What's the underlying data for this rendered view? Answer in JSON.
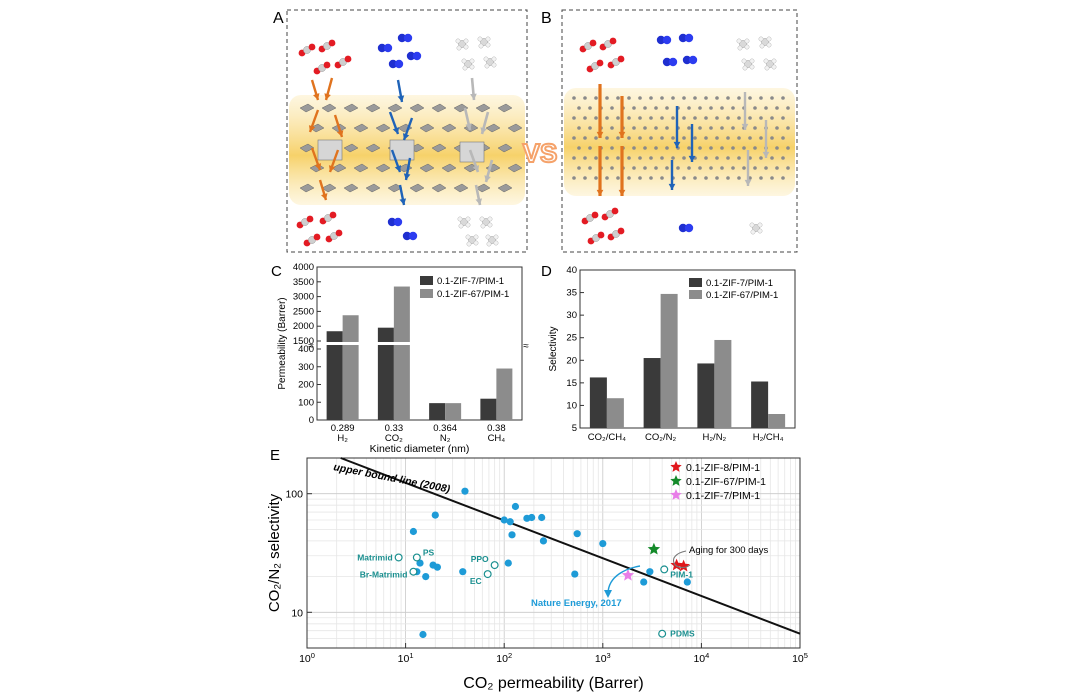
{
  "panels": {
    "A": {
      "letter": "A"
    },
    "B": {
      "letter": "B"
    },
    "vs_label": "VS",
    "C": {
      "letter": "C"
    },
    "D": {
      "letter": "D"
    },
    "E": {
      "letter": "E"
    }
  },
  "colors": {
    "series_dark": "#3a3a3a",
    "series_light": "#8c8c8c",
    "co2_arrow": "#e0731e",
    "n2_arrow": "#1f63b8",
    "ch4_arrow": "#b8b8b8",
    "membrane": "#f4c75a",
    "points": "#1e9bd7",
    "open_points": "#1a8f8f",
    "star_zif8": "#e0161b",
    "star_zif67": "#148a2a",
    "star_zif7": "#e87ee8",
    "vs": "#f5a26a"
  },
  "chart_data": [
    {
      "id": "C",
      "type": "bar",
      "ylabel": "Permeability (Barrer)",
      "xlabel": "Kinetic diameter (nm)",
      "categories": [
        {
          "value": "0.289",
          "gas": "H₂"
        },
        {
          "value": "0.33",
          "gas": "CO₂"
        },
        {
          "value": "0.364",
          "gas": "N₂"
        },
        {
          "value": "0.38",
          "gas": "CH₄"
        }
      ],
      "series": [
        {
          "name": "0.1-ZIF-7/PIM-1",
          "values": [
            1830,
            1950,
            95,
            120
          ]
        },
        {
          "name": "0.1-ZIF-67/PIM-1",
          "values": [
            2370,
            3340,
            95,
            290
          ]
        }
      ],
      "axis_break": [
        400,
        1500
      ],
      "yticks_lower": [
        0,
        100,
        200,
        300,
        400
      ],
      "yticks_upper": [
        1500,
        2000,
        2500,
        3000,
        3500,
        4000
      ],
      "legend_position": "top-right"
    },
    {
      "id": "D",
      "type": "bar",
      "ylabel": "Selectivity",
      "categories": [
        "CO₂/CH₄",
        "CO₂/N₂",
        "H₂/N₂",
        "H₂/CH₄"
      ],
      "series": [
        {
          "name": "0.1-ZIF-7/PIM-1",
          "values": [
            16.2,
            20.5,
            19.3,
            15.3
          ]
        },
        {
          "name": "0.1-ZIF-67/PIM-1",
          "values": [
            11.6,
            34.7,
            24.5,
            8.1
          ]
        }
      ],
      "ylim": [
        5,
        40
      ],
      "yticks": [
        5,
        10,
        15,
        20,
        25,
        30,
        35,
        40
      ],
      "legend_position": "top-left"
    },
    {
      "id": "E",
      "type": "scatter",
      "xlabel": "CO₂ permeability (Barrer)",
      "ylabel": "CO₂/N₂ selectivity",
      "x_scale": "log",
      "y_scale": "log",
      "xlim": [
        1,
        100000
      ],
      "ylim": [
        5,
        200
      ],
      "xtick_exponents": [
        0,
        1,
        2,
        3,
        4,
        5
      ],
      "ytick_labels": [
        {
          "value": 10,
          "label": "10"
        },
        {
          "value": 100,
          "label": "100"
        }
      ],
      "upper_bound": {
        "label": "upper bound line (2008)",
        "points": [
          [
            2.2,
            200
          ],
          [
            100000,
            6.6
          ]
        ]
      },
      "filled_points": [
        [
          12,
          48
        ],
        [
          20,
          66
        ],
        [
          40,
          105
        ],
        [
          100,
          60
        ],
        [
          115,
          58
        ],
        [
          130,
          78
        ],
        [
          170,
          62
        ],
        [
          190,
          63
        ],
        [
          240,
          63
        ],
        [
          120,
          45
        ],
        [
          250,
          40
        ],
        [
          550,
          46
        ],
        [
          1000,
          38
        ],
        [
          13,
          22
        ],
        [
          14,
          26
        ],
        [
          19,
          25
        ],
        [
          21,
          24
        ],
        [
          16,
          20
        ],
        [
          38,
          22
        ],
        [
          110,
          26
        ],
        [
          520,
          21
        ],
        [
          2600,
          18
        ],
        [
          3000,
          22
        ],
        [
          7200,
          18
        ],
        [
          15,
          6.5
        ]
      ],
      "open_points": [
        {
          "x": 8.5,
          "y": 29,
          "label": "Matrimid"
        },
        {
          "x": 13,
          "y": 29,
          "label": "PS"
        },
        {
          "x": 12,
          "y": 22,
          "label": "Br-Matrimid"
        },
        {
          "x": 80,
          "y": 25,
          "label": "PPO"
        },
        {
          "x": 68,
          "y": 21,
          "label": "EC"
        },
        {
          "x": 4200,
          "y": 23,
          "label": "PIM-1"
        },
        {
          "x": 4000,
          "y": 6.6,
          "label": "PDMS"
        }
      ],
      "stars": [
        {
          "name": "0.1-ZIF-8/PIM-1",
          "x": 5600,
          "y": 25
        },
        {
          "name": "0.1-ZIF-8/PIM-1",
          "x": 6600,
          "y": 24.5
        },
        {
          "name": "0.1-ZIF-67/PIM-1",
          "x": 3300,
          "y": 34
        },
        {
          "name": "0.1-ZIF-7/PIM-1",
          "x": 1800,
          "y": 20.5
        }
      ],
      "legend": [
        "0.1-ZIF-8/PIM-1",
        "0.1-ZIF-67/PIM-1",
        "0.1-ZIF-7/PIM-1"
      ],
      "annotations": {
        "aging": "Aging for 300 days",
        "nature": "Nature Energy, 2017"
      },
      "legend_position": "top-right"
    }
  ]
}
